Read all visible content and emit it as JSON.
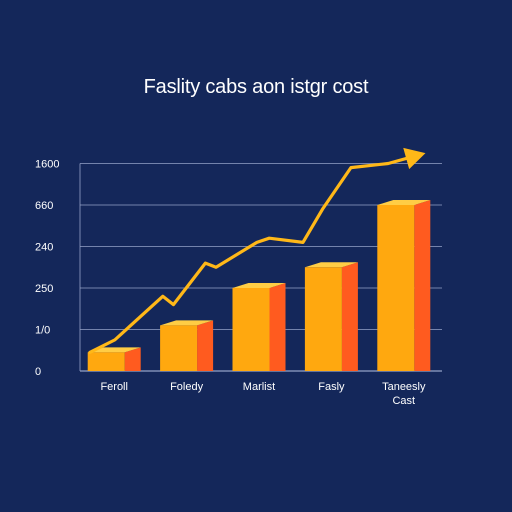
{
  "chart_data": {
    "type": "bar",
    "title": "Faslity cabs aon istgr cost",
    "xlabel": "",
    "ylabel": "",
    "y_tick_labels": [
      "0",
      "1/0",
      "250",
      "240",
      "660",
      "1600"
    ],
    "categories": [
      "Feroll",
      "Foledy",
      "Marlist",
      "Fasly",
      [
        "Taneesly",
        "Cast"
      ]
    ],
    "values": [
      0.45,
      1.1,
      2.0,
      2.5,
      4.0
    ],
    "ylim": [
      0,
      5
    ],
    "trend_line": {
      "x": [
        0,
        0.7,
        2.05,
        2.35,
        3.25,
        3.55,
        4.7,
        5.05,
        6.0,
        6.55,
        7.35,
        8.4,
        9.45
      ],
      "y": [
        0.45,
        0.75,
        1.8,
        1.6,
        2.6,
        2.5,
        3.1,
        3.2,
        3.1,
        3.9,
        4.9,
        5.0,
        5.25
      ]
    },
    "grid": true,
    "colors": {
      "background": "#14275a",
      "bar_front": "#ffa80f",
      "bar_top": "#ffcd45",
      "bar_side": "#ff5b1f",
      "trend": "#ffb818",
      "grid": "#95a3c8",
      "text": "#ffffff"
    }
  }
}
